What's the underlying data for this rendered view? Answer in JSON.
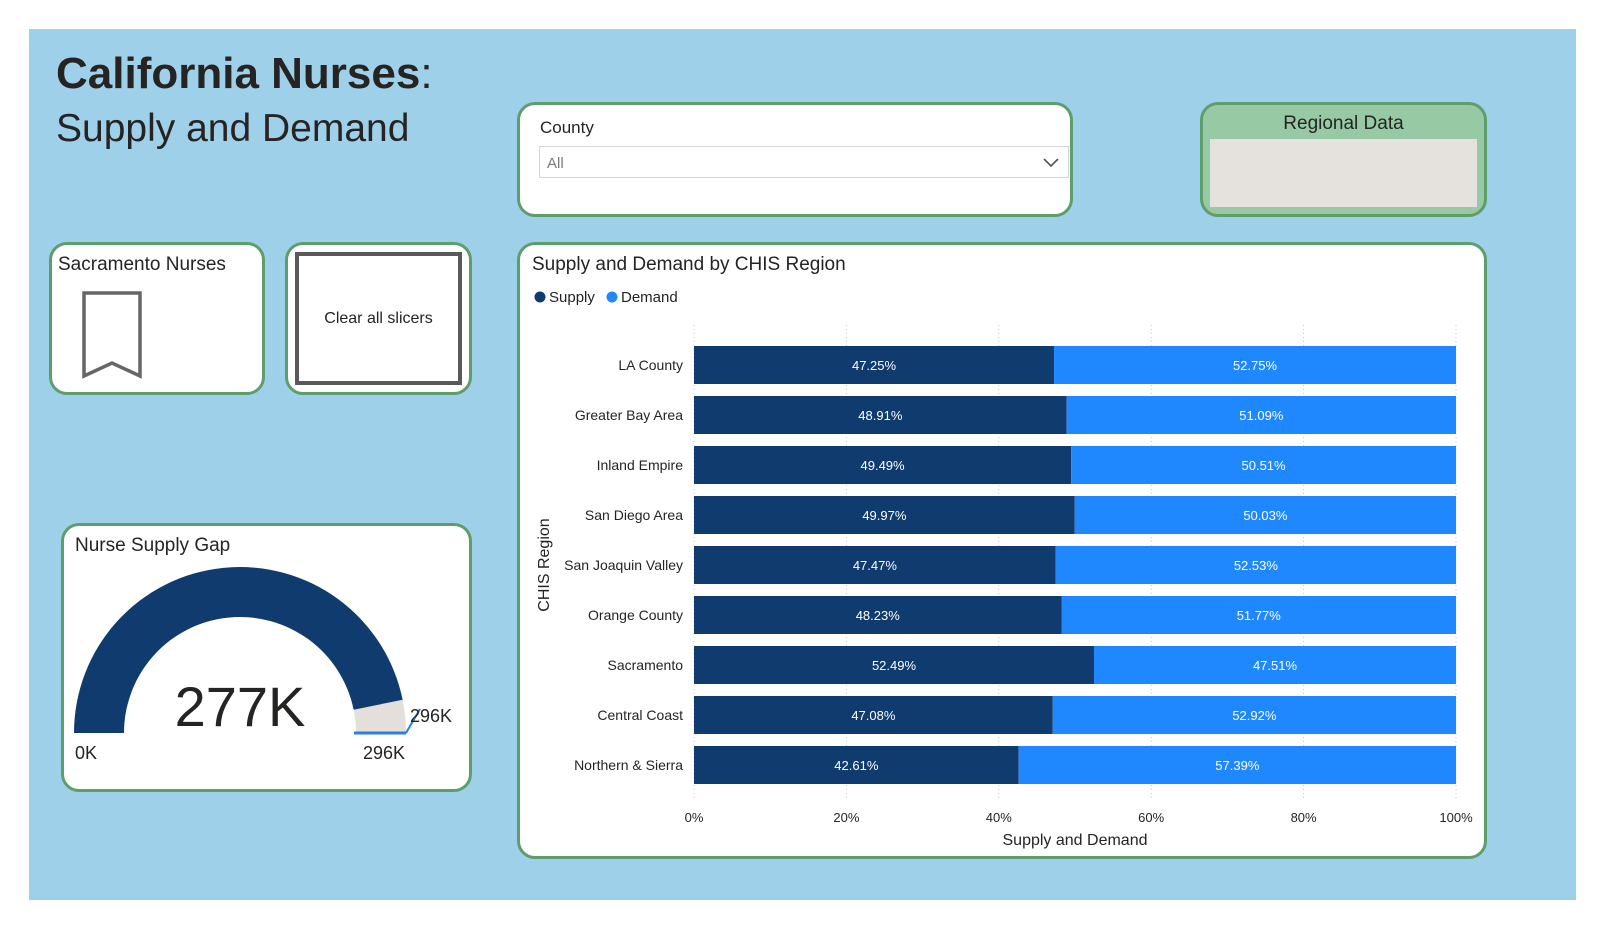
{
  "header": {
    "title": "California Nurses",
    "title_suffix": ":",
    "subtitle": "Supply and Demand"
  },
  "county_slicer": {
    "title": "County",
    "value": "All"
  },
  "regional_data": {
    "title": "Regional Data"
  },
  "sacramento": {
    "title": "Sacramento Nurses"
  },
  "clear_button": {
    "label": "Clear all slicers"
  },
  "gauge": {
    "title": "Nurse Supply Gap",
    "value": 277,
    "max": 296,
    "value_label": "277K",
    "min_label": "0K",
    "max_label": "296K",
    "target_label": "296K",
    "colors": {
      "fill": "#0f3b6e",
      "rest": "#e3dfda",
      "target": "#2f7fd8"
    }
  },
  "chart_data": {
    "type": "bar",
    "stacked": "100%",
    "orientation": "horizontal",
    "title": "Supply and Demand by CHIS Region",
    "xlabel": "Supply and Demand",
    "ylabel": "CHIS Region",
    "xlim": [
      0,
      100
    ],
    "x_ticks": [
      "0%",
      "20%",
      "40%",
      "60%",
      "80%",
      "100%"
    ],
    "categories": [
      "LA County",
      "Greater Bay Area",
      "Inland Empire",
      "San Diego Area",
      "San Joaquin Valley",
      "Orange County",
      "Sacramento",
      "Central Coast",
      "Northern & Sierra"
    ],
    "series": [
      {
        "name": "Supply",
        "color": "#0f3b6e",
        "values": [
          47.25,
          48.91,
          49.49,
          49.97,
          47.47,
          48.23,
          52.49,
          47.08,
          42.61
        ]
      },
      {
        "name": "Demand",
        "color": "#2088ff",
        "values": [
          52.75,
          51.09,
          50.51,
          50.03,
          52.53,
          51.77,
          47.51,
          52.92,
          57.39
        ]
      }
    ],
    "legend": "top-left"
  }
}
